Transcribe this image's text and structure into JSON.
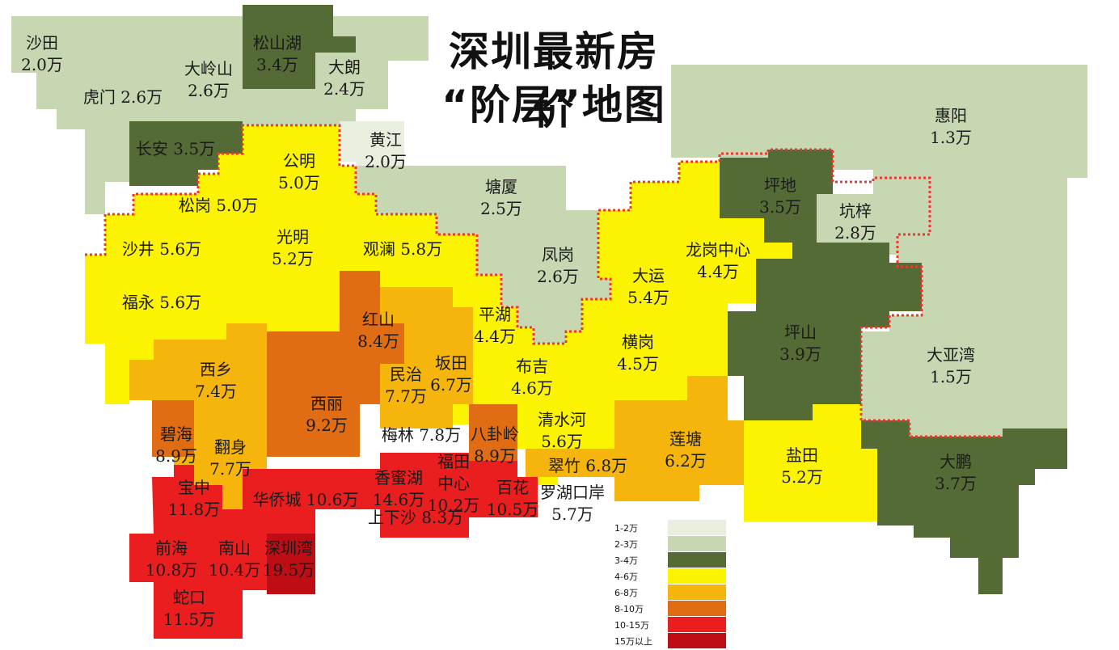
{
  "title_line1": "深圳最新房价",
  "title_line2": "“阶层”地图",
  "colors": {
    "c1": "#e8efdf",
    "c2": "#c6d7b1",
    "c3": "#556b35",
    "c4": "#fbf300",
    "c5": "#f6b50c",
    "c6": "#e06c14",
    "c7": "#ea1e1e",
    "c8": "#be0d14",
    "border": "#e83a30"
  },
  "legend": [
    {
      "label": "1-2万",
      "color": "#e8efdf"
    },
    {
      "label": "2-3万",
      "color": "#c6d7b1"
    },
    {
      "label": "3-4万",
      "color": "#556b35"
    },
    {
      "label": "4-6万",
      "color": "#fbf300"
    },
    {
      "label": "6-8万",
      "color": "#f6b50c"
    },
    {
      "label": "8-10万",
      "color": "#e06c14"
    },
    {
      "label": "10-15万",
      "color": "#ea1e1e"
    },
    {
      "label": "15万以上",
      "color": "#be0d14"
    }
  ],
  "districts": [
    {
      "name": "沙田",
      "price": "2.0万"
    },
    {
      "name": "松山湖",
      "price": "3.4万"
    },
    {
      "name": "大岭山",
      "price": "2.6万"
    },
    {
      "name": "大朗",
      "price": "2.4万"
    },
    {
      "name": "虎门",
      "price": "2.6万"
    },
    {
      "name": "长安",
      "price": "3.5万"
    },
    {
      "name": "黄江",
      "price": "2.0万"
    },
    {
      "name": "公明",
      "price": "5.0万"
    },
    {
      "name": "松岗",
      "price": "5.0万"
    },
    {
      "name": "塘厦",
      "price": "2.5万"
    },
    {
      "name": "惠阳",
      "price": "1.3万"
    },
    {
      "name": "坪地",
      "price": "3.5万"
    },
    {
      "name": "坑梓",
      "price": "2.8万"
    },
    {
      "name": "沙井",
      "price": "5.6万"
    },
    {
      "name": "光明",
      "price": "5.2万"
    },
    {
      "name": "观澜",
      "price": "5.8万"
    },
    {
      "name": "凤岗",
      "price": "2.6万"
    },
    {
      "name": "龙岗中心",
      "price": "4.4万"
    },
    {
      "name": "大运",
      "price": "5.4万"
    },
    {
      "name": "福永",
      "price": "5.6万"
    },
    {
      "name": "红山",
      "price": "8.4万"
    },
    {
      "name": "平湖",
      "price": "4.4万"
    },
    {
      "name": "坪山",
      "price": "3.9万"
    },
    {
      "name": "大亚湾",
      "price": "1.5万"
    },
    {
      "name": "横岗",
      "price": "4.5万"
    },
    {
      "name": "西乡",
      "price": "7.4万"
    },
    {
      "name": "民治",
      "price": "7.7万"
    },
    {
      "name": "坂田",
      "price": "6.7万"
    },
    {
      "name": "布吉",
      "price": "4.6万"
    },
    {
      "name": "西丽",
      "price": "9.2万"
    },
    {
      "name": "碧海",
      "price": "8.9万"
    },
    {
      "name": "梅林",
      "price": "7.8万"
    },
    {
      "name": "八卦岭",
      "price": "8.9万"
    },
    {
      "name": "清水河",
      "price": "5.6万"
    },
    {
      "name": "莲塘",
      "price": "6.2万"
    },
    {
      "name": "翻身",
      "price": "7.7万"
    },
    {
      "name": "盐田",
      "price": "5.2万"
    },
    {
      "name": "大鹏",
      "price": "3.7万"
    },
    {
      "name": "翠竹",
      "price": "6.8万"
    },
    {
      "name": "福田中心",
      "price": "10.2万"
    },
    {
      "name": "香蜜湖",
      "price": "14.6万"
    },
    {
      "name": "宝中",
      "price": "11.8万"
    },
    {
      "name": "华侨城",
      "price": "10.6万"
    },
    {
      "name": "百花",
      "price": "10.5万"
    },
    {
      "name": "罗湖口岸",
      "price": "5.7万"
    },
    {
      "name": "上下沙",
      "price": "8.3万"
    },
    {
      "name": "前海",
      "price": "10.8万"
    },
    {
      "name": "南山",
      "price": "10.4万"
    },
    {
      "name": "深圳湾",
      "price": "19.5万"
    },
    {
      "name": "蛇口",
      "price": "11.5万"
    }
  ]
}
